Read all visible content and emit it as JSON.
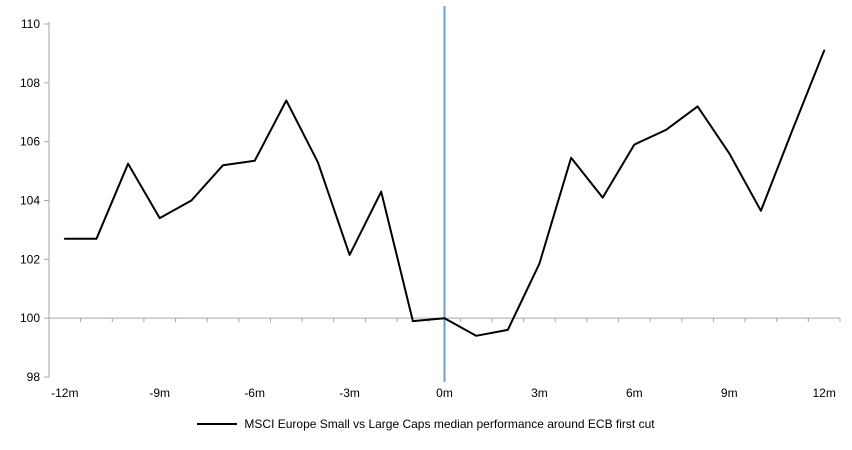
{
  "chart_data": {
    "type": "line",
    "title": "",
    "xlabel": "",
    "ylabel": "",
    "x": [
      -12,
      -11,
      -10,
      -9,
      -8,
      -7,
      -6,
      -5,
      -4,
      -3,
      -2,
      -1,
      0,
      1,
      2,
      3,
      4,
      5,
      6,
      7,
      8,
      9,
      10,
      11,
      12
    ],
    "series": [
      {
        "name": "MSCI Europe Small vs Large Caps median performance around ECB first cut",
        "color": "#000000",
        "values": [
          102.7,
          102.7,
          105.25,
          103.4,
          104.0,
          105.2,
          105.35,
          107.4,
          105.3,
          102.15,
          104.3,
          99.9,
          100.0,
          99.4,
          99.6,
          101.85,
          105.45,
          104.1,
          105.9,
          106.4,
          107.2,
          105.6,
          103.65,
          106.4,
          109.1
        ]
      }
    ],
    "xlim": [
      -12,
      12
    ],
    "ylim": [
      98,
      110
    ],
    "y_ticks": [
      98,
      100,
      102,
      104,
      106,
      108,
      110
    ],
    "x_tick_months": [
      -12,
      -9,
      -6,
      -3,
      0,
      3,
      6,
      9,
      12
    ],
    "x_tick_labels": [
      "-12m",
      "-9m",
      "-6m",
      "-3m",
      "0m",
      "3m",
      "6m",
      "9m",
      "12m"
    ],
    "category_axis_value": 100,
    "event_line": {
      "x": 0,
      "color": "#6FA0CD"
    },
    "axis_color": "#A6A6A6",
    "grid": "off",
    "legend_position": "bottom-center"
  }
}
